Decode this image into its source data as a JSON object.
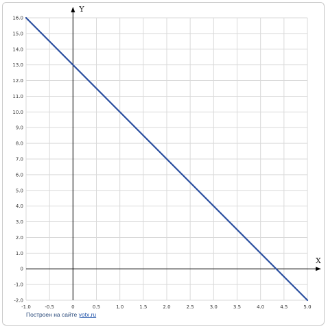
{
  "chart_data": {
    "type": "line",
    "x_axis_name": "X",
    "y_axis_name": "Y",
    "xlim": [
      -1.0,
      5.0
    ],
    "ylim": [
      -2.0,
      16.0
    ],
    "x_ticks": [
      "-1.0",
      "-0.5",
      "0",
      "0.5",
      "1.0",
      "1.5",
      "2.0",
      "2.5",
      "3.0",
      "3.5",
      "4.0",
      "4.5",
      "5.0"
    ],
    "y_ticks": [
      "16.0",
      "15.0",
      "14.0",
      "13.0",
      "12.0",
      "11.0",
      "10.0",
      "9.0",
      "8.0",
      "7.0",
      "6.0",
      "5.0",
      "4.0",
      "3.0",
      "2.0",
      "1.0",
      "0",
      "-1.0",
      "-2.0"
    ],
    "grid": true,
    "series": [
      {
        "color": "#2b4fa0",
        "points": [
          [
            -1.0,
            16.0
          ],
          [
            5.0,
            -2.0
          ]
        ]
      }
    ]
  },
  "credit": {
    "prefix": "Построен на сайте ",
    "link": "yotx.ru"
  },
  "colors": {
    "grid": "#d9d9d9",
    "axis": "#000000",
    "line": "#2b4fa0"
  }
}
